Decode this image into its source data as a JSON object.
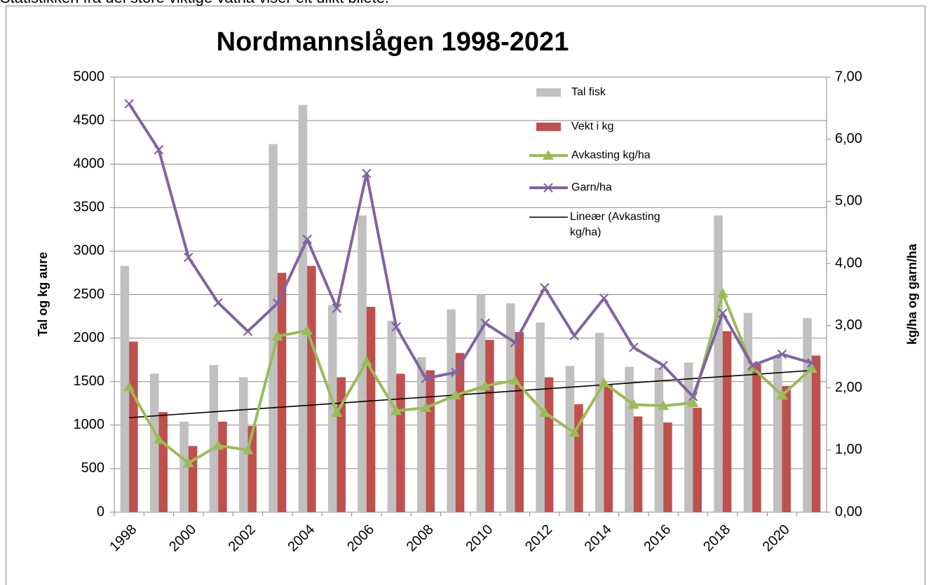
{
  "caption": "Statistikken frå dei store viktige vatna viser eit ulikt bilete.",
  "chart_data": {
    "type": "bar-line",
    "title": "Nordmannslågen 1998-2021",
    "y_label": "Tal og kg aure",
    "y2_label": "kg/ha og garn/ha",
    "categories": [
      "1998",
      null,
      "2000",
      null,
      "2002",
      null,
      "2004",
      null,
      "2006",
      null,
      "2008",
      null,
      "2010",
      null,
      "2012",
      null,
      "2014",
      null,
      "2016",
      null,
      "2018",
      null,
      "2020",
      null
    ],
    "series": [
      {
        "name": "Tal fisk",
        "kind": "bar",
        "color": "#c0c0c0",
        "values": [
          2830,
          1590,
          1040,
          1690,
          1550,
          4230,
          4680,
          2380,
          3410,
          2200,
          1780,
          2330,
          2500,
          2400,
          2180,
          1680,
          2060,
          1670,
          1660,
          1720,
          3410,
          2290,
          1800,
          2230
        ]
      },
      {
        "name": "Vekt i kg",
        "kind": "bar",
        "color": "#c0504d",
        "values": [
          1960,
          1150,
          760,
          1040,
          990,
          2750,
          2830,
          1550,
          2360,
          1590,
          1630,
          1830,
          1980,
          2070,
          1550,
          1240,
          1460,
          1100,
          1030,
          1200,
          2080,
          1700,
          1450,
          1800
        ]
      },
      {
        "name": "Avkasting kg/ha",
        "kind": "line",
        "marker": "triangle",
        "axis": "y2",
        "color": "#9bbb59",
        "values": [
          2.01,
          1.17,
          0.79,
          1.07,
          1.0,
          2.83,
          2.92,
          1.6,
          2.42,
          1.63,
          1.68,
          1.88,
          2.03,
          2.12,
          1.6,
          1.28,
          2.08,
          1.73,
          1.71,
          1.76,
          3.52,
          2.33,
          1.88,
          2.31
        ]
      },
      {
        "name": "Garn/ha",
        "kind": "line",
        "marker": "x",
        "axis": "y2",
        "color": "#8064a2",
        "values": [
          6.57,
          5.83,
          4.1,
          3.37,
          2.91,
          3.36,
          4.39,
          3.28,
          5.45,
          2.98,
          2.15,
          2.25,
          3.04,
          2.73,
          3.61,
          2.84,
          3.44,
          2.65,
          2.36,
          1.86,
          3.2,
          2.36,
          2.54,
          2.4
        ]
      }
    ],
    "trend": {
      "name": "Lineær (Avkasting kg/ha)",
      "color": "#000000",
      "axis": "y2",
      "values": [
        1.52,
        2.28
      ]
    },
    "ylim": [
      0,
      5000
    ],
    "yticks": [
      0,
      500,
      1000,
      1500,
      2000,
      2500,
      3000,
      3500,
      4000,
      4500,
      5000
    ],
    "y2lim": [
      0,
      7
    ],
    "y2ticks": [
      {
        "value": 0,
        "label": "0,00"
      },
      {
        "value": 1,
        "label": "1,00"
      },
      {
        "value": 2,
        "label": "2,00"
      },
      {
        "value": 3,
        "label": "3,00"
      },
      {
        "value": 4,
        "label": "4,00"
      },
      {
        "value": 5,
        "label": "5,00"
      },
      {
        "value": 6,
        "label": "6,00"
      },
      {
        "value": 7,
        "label": "7,00"
      }
    ],
    "grid": true,
    "legend": "top-right"
  }
}
